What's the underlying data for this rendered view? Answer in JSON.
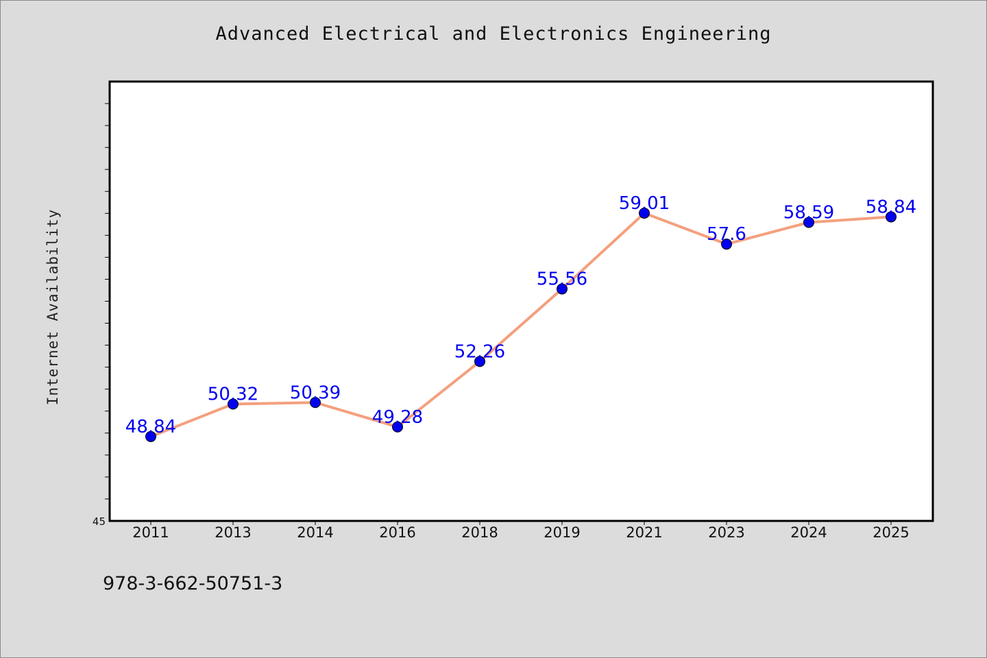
{
  "chart_data": {
    "type": "line",
    "title": "Advanced Electrical and Electronics Engineering",
    "ylabel": "Internet Availability",
    "xlabel": "",
    "categories": [
      "2011",
      "2013",
      "2014",
      "2016",
      "2018",
      "2019",
      "2021",
      "2023",
      "2024",
      "2025"
    ],
    "series": [
      {
        "values": [
          48.84,
          50.32,
          50.39,
          49.28,
          52.26,
          55.56,
          59.01,
          57.6,
          58.59,
          58.84
        ],
        "labels": [
          "48.84",
          "50.32",
          "50.39",
          "49.28",
          "52.26",
          "55.56",
          "59.01",
          "57.6",
          "58.59",
          "58.84"
        ],
        "line_color": "#f4a07e",
        "marker_color": "#0000ee"
      }
    ],
    "ylim": [
      45,
      65
    ],
    "y_tick_label": "45",
    "grid": false,
    "data_label_color": "#0000ee"
  },
  "footer": {
    "isbn": "978-3-662-50751-3"
  }
}
